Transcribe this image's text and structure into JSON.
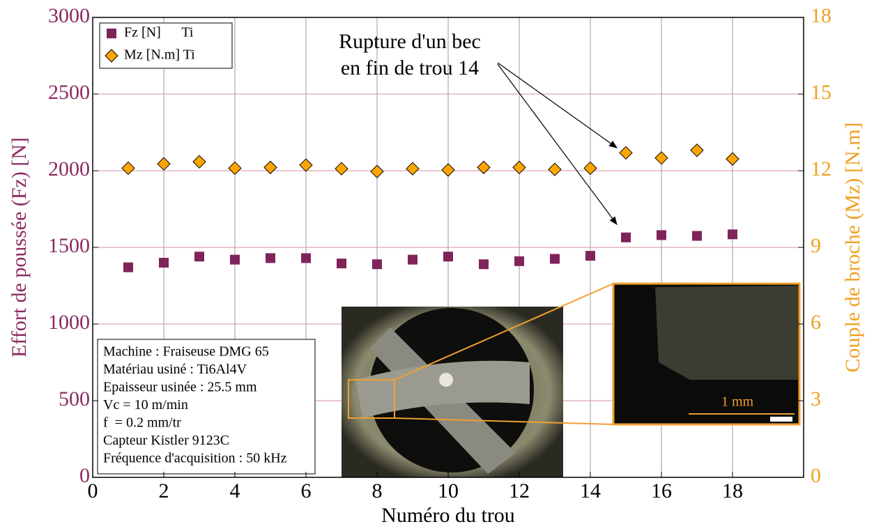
{
  "chart_data": {
    "type": "scatter",
    "xlabel": "Numéro du trou",
    "ylabel": "Effort de poussée (Fz) [N]",
    "y2label": "Couple de broche (Mz) [N.m]",
    "x": [
      1,
      2,
      3,
      4,
      5,
      6,
      7,
      8,
      9,
      10,
      11,
      12,
      13,
      14,
      15,
      16,
      17,
      18
    ],
    "series": [
      {
        "name": "Fz [N]      Ti",
        "color": "#7f2458",
        "marker": "square",
        "axis": "y",
        "values": [
          1370,
          1400,
          1440,
          1420,
          1430,
          1430,
          1395,
          1390,
          1420,
          1440,
          1390,
          1410,
          1425,
          1445,
          1565,
          1580,
          1575,
          1585
        ]
      },
      {
        "name": "Mz [N.m] Ti",
        "color": "#ffa500",
        "marker": "diamond",
        "axis": "y2",
        "values": [
          12.1,
          12.27,
          12.35,
          12.1,
          12.13,
          12.22,
          12.08,
          11.97,
          12.08,
          12.03,
          12.13,
          12.13,
          12.05,
          12.1,
          12.7,
          12.5,
          12.8,
          12.46
        ]
      }
    ],
    "xlim": [
      0,
      20
    ],
    "xticks": [
      0,
      2,
      4,
      6,
      8,
      10,
      12,
      14,
      16,
      18
    ],
    "ylim": [
      0,
      3000
    ],
    "yticks": [
      0,
      500,
      1000,
      1500,
      2000,
      2500,
      3000
    ],
    "y2lim": [
      0,
      18
    ],
    "y2ticks": [
      0,
      3,
      6,
      9,
      12,
      15,
      18
    ],
    "grid": true,
    "legend": "upper left",
    "annotation": [
      "Rupture d'un bec",
      "en fin de trou 14"
    ],
    "info_box": [
      "Machine : Fraiseuse DMG 65",
      "Matériau usiné : Ti6Al4V",
      "Epaisseur usinée : 25.5 mm",
      "Vc = 10 m/min",
      "f  = 0.2 mm/tr",
      "Capteur Kistler 9123C",
      "Fréquence d'acquisition : 50 kHz"
    ],
    "inset_label": "1 mm"
  }
}
